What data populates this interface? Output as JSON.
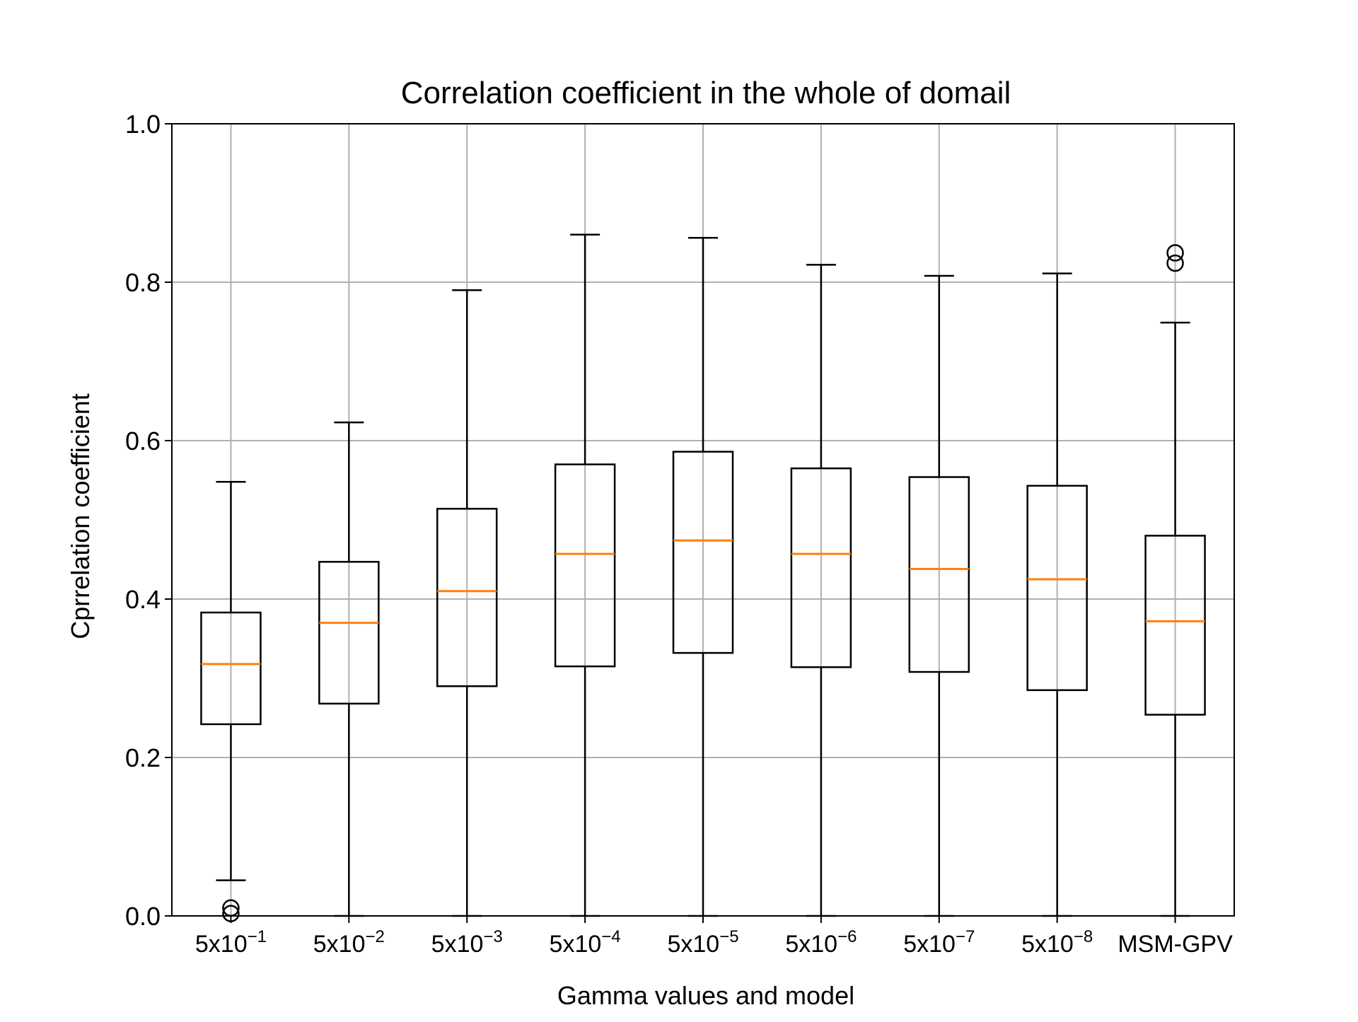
{
  "chart_data": {
    "type": "boxplot",
    "title": "Correlation coefficient in the whole of domail",
    "xlabel": "Gamma values and model",
    "ylabel": "Cprrelation coefficient",
    "ylim": [
      0,
      1
    ],
    "yticks": [
      "0.0",
      "0.2",
      "0.4",
      "0.6",
      "0.8",
      "1.0"
    ],
    "grid": true,
    "colors": {
      "box": "#000000",
      "median": "#ff7f0e",
      "grid": "#b0b0b0"
    },
    "categories": [
      {
        "base": "5x10",
        "exp": "−1"
      },
      {
        "base": "5x10",
        "exp": "−2"
      },
      {
        "base": "5x10",
        "exp": "−3"
      },
      {
        "base": "5x10",
        "exp": "−4"
      },
      {
        "base": "5x10",
        "exp": "−5"
      },
      {
        "base": "5x10",
        "exp": "−6"
      },
      {
        "base": "5x10",
        "exp": "−7"
      },
      {
        "base": "5x10",
        "exp": "−8"
      },
      {
        "base": "MSM-GPV",
        "exp": ""
      }
    ],
    "boxes": [
      {
        "whislo": 0.045,
        "q1": 0.242,
        "med": 0.318,
        "q3": 0.383,
        "whishi": 0.548,
        "fliers": [
          0.01,
          0.003
        ]
      },
      {
        "whislo": 0.0,
        "q1": 0.268,
        "med": 0.37,
        "q3": 0.447,
        "whishi": 0.623,
        "fliers": []
      },
      {
        "whislo": 0.0,
        "q1": 0.29,
        "med": 0.41,
        "q3": 0.514,
        "whishi": 0.79,
        "fliers": []
      },
      {
        "whislo": 0.0,
        "q1": 0.315,
        "med": 0.457,
        "q3": 0.57,
        "whishi": 0.86,
        "fliers": []
      },
      {
        "whislo": 0.0,
        "q1": 0.332,
        "med": 0.474,
        "q3": 0.586,
        "whishi": 0.856,
        "fliers": []
      },
      {
        "whislo": 0.0,
        "q1": 0.314,
        "med": 0.457,
        "q3": 0.565,
        "whishi": 0.822,
        "fliers": []
      },
      {
        "whislo": 0.0,
        "q1": 0.308,
        "med": 0.438,
        "q3": 0.554,
        "whishi": 0.808,
        "fliers": []
      },
      {
        "whislo": 0.0,
        "q1": 0.285,
        "med": 0.425,
        "q3": 0.543,
        "whishi": 0.811,
        "fliers": []
      },
      {
        "whislo": 0.0,
        "q1": 0.254,
        "med": 0.372,
        "q3": 0.48,
        "whishi": 0.749,
        "fliers": [
          0.824,
          0.837
        ]
      }
    ]
  }
}
